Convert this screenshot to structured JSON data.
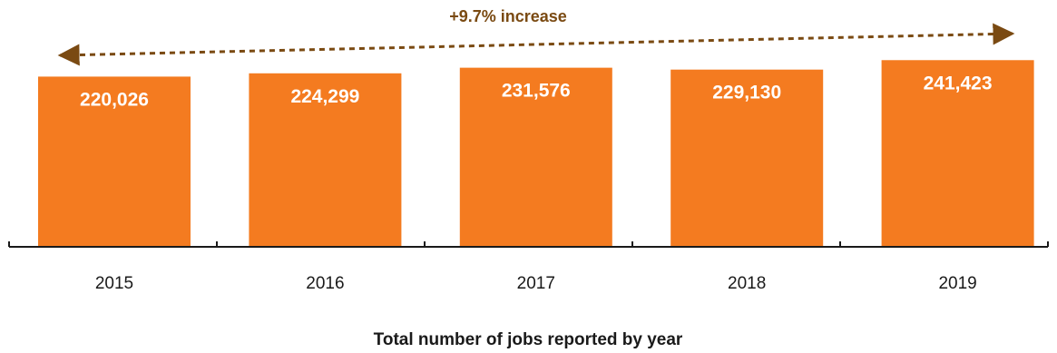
{
  "chart_data": {
    "type": "bar",
    "title": "",
    "xlabel": "Total number of jobs reported by year",
    "ylabel": "",
    "categories": [
      "2015",
      "2016",
      "2017",
      "2018",
      "2019"
    ],
    "values": [
      220026,
      224299,
      231576,
      229130,
      241423
    ],
    "data_labels": [
      "220,026",
      "224,299",
      "231,576",
      "229,130",
      "241,423"
    ],
    "ylim": [
      0,
      250000
    ],
    "grid": false,
    "annotation": {
      "text": "+9.7% increase",
      "from": "2015",
      "to": "2019",
      "style": "dashed double arrow"
    },
    "colors": {
      "bar": "#f47b20",
      "annotation": "#7a4a12",
      "axis": "#1a1a1a"
    }
  }
}
